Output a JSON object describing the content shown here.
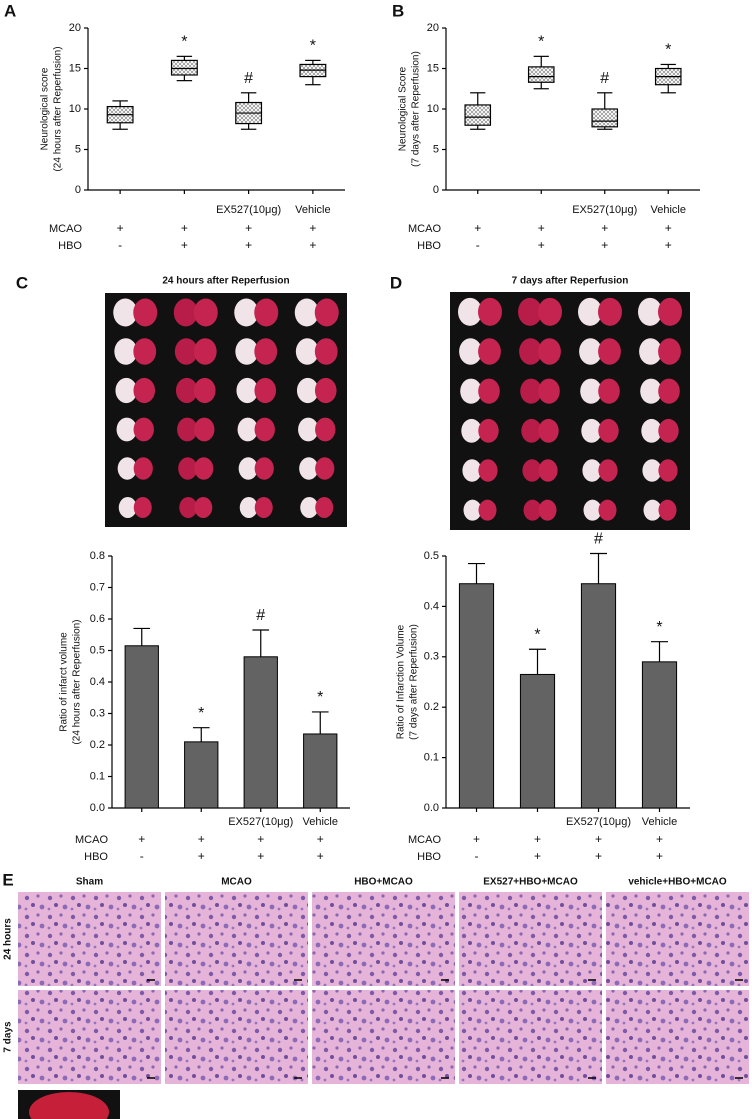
{
  "chart_data": [
    {
      "type": "box",
      "panel": "A",
      "y_label": [
        "Neurological score",
        "(24 hours after Reperfusion)"
      ],
      "categories": [
        null,
        null,
        "EX527(10μg)",
        "Vehicle"
      ],
      "min": [
        7.5,
        13.5,
        7.5,
        13
      ],
      "q1": [
        8.3,
        14.2,
        8.2,
        14
      ],
      "median": [
        9.3,
        15,
        9.5,
        14.8
      ],
      "q3": [
        10.3,
        16,
        10.8,
        15.5
      ],
      "max": [
        11,
        16.5,
        12,
        16
      ],
      "annotations": [
        null,
        "*",
        "#",
        "*"
      ],
      "conditions": [
        {
          "name": "MCAO",
          "values": [
            "+",
            "+",
            "+",
            "+"
          ]
        },
        {
          "name": "HBO",
          "values": [
            "-",
            "+",
            "+",
            "+"
          ]
        }
      ],
      "ylim": [
        0,
        20
      ],
      "yticks": [
        0,
        5,
        10,
        15,
        20
      ],
      "color": "#ffffff"
    },
    {
      "type": "box",
      "panel": "B",
      "y_label": [
        "Neurological Score",
        "(7 days after Reperfusion)"
      ],
      "categories": [
        null,
        null,
        "EX527(10μg)",
        "Vehicle"
      ],
      "min": [
        7.5,
        12.5,
        7.5,
        12
      ],
      "q1": [
        8,
        13.3,
        7.8,
        13
      ],
      "median": [
        9,
        14,
        8.5,
        14
      ],
      "q3": [
        10.5,
        15.2,
        10,
        15
      ],
      "max": [
        12,
        16.5,
        12,
        15.5
      ],
      "annotations": [
        null,
        "*",
        "#",
        "*"
      ],
      "conditions": [
        {
          "name": "MCAO",
          "values": [
            "+",
            "+",
            "+",
            "+"
          ]
        },
        {
          "name": "HBO",
          "values": [
            "-",
            "+",
            "+",
            "+"
          ]
        }
      ],
      "ylim": [
        0,
        20
      ],
      "yticks": [
        0,
        5,
        10,
        15,
        20
      ],
      "color": "#ffffff"
    },
    {
      "type": "bar",
      "y_label": [
        "Ratio of infarct volume",
        "(24 hours after Reperfusion)"
      ],
      "categories": [
        null,
        null,
        "EX527(10μg)",
        "Vehicle"
      ],
      "values": [
        0.515,
        0.21,
        0.48,
        0.235
      ],
      "errors": [
        0.055,
        0.045,
        0.085,
        0.07
      ],
      "annotations": [
        null,
        "*",
        "#",
        "*"
      ],
      "conditions": [
        {
          "name": "MCAO",
          "values": [
            "+",
            "+",
            "+",
            "+"
          ]
        },
        {
          "name": "HBO",
          "values": [
            "-",
            "+",
            "+",
            "+"
          ]
        }
      ],
      "ylim": [
        0,
        0.8
      ],
      "yticks": [
        {
          "value": 0,
          "label": "0.0"
        },
        0.1,
        0.2,
        0.3,
        0.4,
        0.5,
        0.6,
        0.7,
        0.8
      ],
      "color": "#636363"
    },
    {
      "type": "bar",
      "y_label": [
        "Ratio of Infarction Volume",
        "(7 days after Reperfusion)"
      ],
      "categories": [
        null,
        null,
        "EX527(10μg)",
        "Vehicle"
      ],
      "values": [
        0.445,
        0.265,
        0.445,
        0.29
      ],
      "errors": [
        0.04,
        0.05,
        0.06,
        0.04
      ],
      "annotations": [
        null,
        "*",
        "#",
        "*"
      ],
      "conditions": [
        {
          "name": "MCAO",
          "values": [
            "+",
            "+",
            "+",
            "+"
          ]
        },
        {
          "name": "HBO",
          "values": [
            "-",
            "+",
            "+",
            "+"
          ]
        }
      ],
      "ylim": [
        0,
        0.5
      ],
      "yticks": [
        {
          "value": 0,
          "label": "0.0"
        },
        0.1,
        0.2,
        0.3,
        0.4,
        0.5
      ],
      "color": "#636363"
    }
  ],
  "photo_panels": [
    {
      "panel": "C",
      "title": "24 hours after Reperfusion"
    },
    {
      "panel": "D",
      "title": "7 days after Reperfusion"
    }
  ],
  "histology": {
    "panel": "E",
    "columns": [
      "Sham",
      "MCAO",
      "HBO+MCAO",
      "EX527+HBO+MCAO",
      "vehicle+HBO+MCAO"
    ],
    "rows": [
      "24 hours",
      "7 days"
    ]
  }
}
